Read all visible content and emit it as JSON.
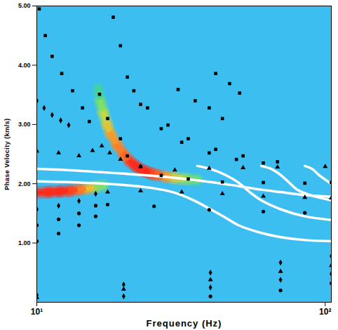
{
  "chart_data": {
    "type": "dispersion",
    "x_label": "Frequency (Hz)",
    "y_label": "Phase Velocity (km/s)",
    "log": "x",
    "grid": false,
    "xlim": [
      10,
      105
    ],
    "xticks": [
      {
        "value": 10,
        "label": "10¹"
      },
      {
        "value": 100,
        "label": "10²"
      }
    ],
    "ylim": [
      0,
      5
    ],
    "yticks": [
      {
        "value": 1,
        "label": "1.00"
      },
      {
        "value": 2,
        "label": "2.00"
      },
      {
        "value": 3,
        "label": "3.00"
      },
      {
        "value": 4,
        "label": "4.00"
      },
      {
        "value": 5,
        "label": "5.00"
      }
    ],
    "heatmap": {
      "colors": [
        "#3cbff0",
        "#33dd77",
        "#ffee33",
        "#ff2a1a"
      ],
      "color_range": [
        0,
        1
      ],
      "ridges": [
        {
          "x": [
            10,
            11,
            12,
            13,
            14,
            15,
            16,
            17
          ],
          "y": [
            1.85,
            1.86,
            1.87,
            1.88,
            1.9,
            1.92,
            1.95,
            1.97
          ],
          "values": [
            1,
            1,
            1,
            0.95,
            0.85,
            0.7,
            0.45,
            0.25
          ]
        },
        {
          "x": [
            16.3,
            16.6,
            17,
            17.5,
            18,
            19,
            20,
            21,
            22,
            23,
            24,
            25,
            26,
            28,
            30,
            33,
            36
          ],
          "y": [
            3.6,
            3.4,
            3.2,
            3.0,
            2.85,
            2.65,
            2.5,
            2.38,
            2.3,
            2.24,
            2.2,
            2.17,
            2.15,
            2.12,
            2.1,
            2.08,
            2.07
          ],
          "values": [
            0.25,
            0.45,
            0.6,
            0.7,
            0.8,
            0.85,
            0.9,
            1,
            1,
            1,
            1,
            0.95,
            0.9,
            0.75,
            0.6,
            0.4,
            0.25
          ]
        }
      ]
    },
    "series": [
      {
        "type": "line",
        "color": "#ffffff",
        "line_style": "solid",
        "x": [
          10,
          14,
          20,
          30,
          40,
          50,
          60,
          70,
          85,
          105
        ],
        "values": [
          2.25,
          2.22,
          2.17,
          2.1,
          2.03,
          1.96,
          1.9,
          1.86,
          1.81,
          1.78
        ]
      },
      {
        "type": "line",
        "color": "#ffffff",
        "line_style": "solid",
        "x": [
          10,
          14,
          20,
          25,
          30,
          35,
          40,
          45,
          50,
          60,
          70,
          85,
          105
        ],
        "values": [
          2.04,
          2.02,
          1.98,
          1.93,
          1.85,
          1.72,
          1.57,
          1.43,
          1.3,
          1.17,
          1.1,
          1.05,
          1.03
        ]
      },
      {
        "type": "line",
        "color": "#ffffff",
        "line_style": "solid",
        "x": [
          36,
          40,
          45,
          50,
          55,
          60,
          70,
          85,
          105
        ],
        "values": [
          2.3,
          2.25,
          2.15,
          2.02,
          1.85,
          1.72,
          1.57,
          1.45,
          1.39
        ]
      },
      {
        "type": "line",
        "color": "#ffffff",
        "line_style": "solid",
        "x": [
          60,
          65,
          70,
          75,
          80,
          90,
          105
        ],
        "values": [
          2.3,
          2.25,
          2.15,
          2.02,
          1.9,
          1.8,
          1.72
        ]
      },
      {
        "type": "line",
        "color": "#ffffff",
        "line_style": "solid",
        "x": [
          85,
          90,
          95,
          105
        ],
        "values": [
          2.3,
          2.25,
          2.15,
          2.0
        ]
      },
      {
        "type": "scatter",
        "marker": "square",
        "color": "#000000",
        "x": [
          10.2,
          10.7,
          11.3,
          12.2,
          13.3,
          14.4,
          15.2
        ],
        "values": [
          4.95,
          4.5,
          4.15,
          3.86,
          3.57,
          3.28,
          3.05
        ]
      },
      {
        "type": "scatter",
        "marker": "diamond",
        "color": "#000000",
        "x": [
          10,
          10.6,
          11.3,
          12.1,
          12.9
        ],
        "values": [
          3.4,
          3.28,
          3.16,
          3.07,
          2.99
        ]
      },
      {
        "type": "scatter",
        "marker": "triangle",
        "color": "#000000",
        "x": [
          10,
          11.9,
          14,
          15.6,
          16.8,
          17.9,
          19.5,
          22.9,
          30.1,
          39.6,
          51.9,
          68.3,
          100
        ],
        "values": [
          2.55,
          2.52,
          2.47,
          2.56,
          2.64,
          2.52,
          2.41,
          2.29,
          2.23,
          2.26,
          2.27,
          2.28,
          2.29
        ]
      },
      {
        "type": "scatter",
        "marker": "square",
        "color": "#000000",
        "x": [
          16.5,
          17.6,
          19.5,
          20.6,
          22.9,
          27,
          33.5,
          44,
          61,
          85,
          105
        ],
        "values": [
          3.51,
          3.1,
          2.76,
          2.47,
          2.29,
          2.14,
          2.08,
          2.03,
          2.02,
          2.01,
          2.02
        ]
      },
      {
        "type": "scatter",
        "marker": "square",
        "color": "#000000",
        "x": [
          18.4,
          19.5,
          20.6,
          22.9,
          27,
          31.8,
          39.6,
          49.2,
          61
        ],
        "values": [
          4.81,
          4.33,
          3.8,
          3.34,
          2.93,
          2.7,
          2.52,
          2.41,
          2.35
        ]
      },
      {
        "type": "scatter",
        "marker": "square",
        "color": "#000000",
        "x": [
          21.7,
          24.2,
          28.5,
          33.5,
          41.7,
          51.9,
          68.3
        ],
        "values": [
          3.57,
          3.28,
          2.99,
          2.76,
          2.58,
          2.47,
          2.37
        ]
      },
      {
        "type": "scatter",
        "marker": "square",
        "color": "#000000",
        "x": [
          30.9,
          35.4,
          39.6,
          44
        ],
        "values": [
          3.59,
          3.4,
          3.28,
          3.1
        ]
      },
      {
        "type": "scatter",
        "marker": "square",
        "color": "#000000",
        "x": [
          41.7,
          46.6,
          50.5
        ],
        "values": [
          3.86,
          3.69,
          3.53
        ]
      },
      {
        "type": "scatter",
        "marker": "diamond",
        "color": "#000000",
        "x": [
          10,
          11.9,
          14,
          16
        ],
        "values": [
          1.57,
          1.63,
          1.71,
          1.83
        ]
      },
      {
        "type": "scatter",
        "marker": "circle",
        "color": "#000000",
        "x": [
          10,
          11.9,
          14,
          16
        ],
        "values": [
          1.3,
          1.4,
          1.5,
          1.63
        ]
      },
      {
        "type": "scatter",
        "marker": "circle",
        "color": "#000000",
        "x": [
          10,
          11.9,
          14,
          16
        ],
        "values": [
          1.03,
          1.16,
          1.3,
          1.45
        ]
      },
      {
        "type": "scatter",
        "marker": "triangle",
        "color": "#000000",
        "x": [
          17.6,
          22.9,
          31.8,
          44,
          61,
          85,
          105
        ],
        "values": [
          1.86,
          1.88,
          1.86,
          1.83,
          1.79,
          1.77,
          1.76
        ]
      },
      {
        "type": "scatter",
        "marker": "circle",
        "color": "#000000",
        "x": [
          17.6,
          25.5,
          39.6,
          61,
          85
        ],
        "values": [
          1.65,
          1.62,
          1.56,
          1.53,
          1.51
        ]
      },
      {
        "type": "scatter",
        "marker": "diamond",
        "color": "#000000",
        "x": [
          10,
          20,
          40,
          70,
          105
        ],
        "values": [
          0.12,
          0.3,
          0.5,
          0.67,
          0.78
        ]
      },
      {
        "type": "scatter",
        "marker": "triangle",
        "color": "#000000",
        "x": [
          10,
          20,
          40,
          70,
          105
        ],
        "values": [
          0.08,
          0.22,
          0.38,
          0.52,
          0.62
        ]
      },
      {
        "type": "scatter",
        "marker": "diamond",
        "color": "#000000",
        "x": [
          20,
          40,
          70,
          105
        ],
        "values": [
          0.1,
          0.25,
          0.38,
          0.48
        ]
      },
      {
        "type": "scatter",
        "marker": "circle",
        "color": "#000000",
        "x": [
          40,
          70,
          105
        ],
        "values": [
          0.1,
          0.2,
          0.32
        ]
      }
    ]
  }
}
